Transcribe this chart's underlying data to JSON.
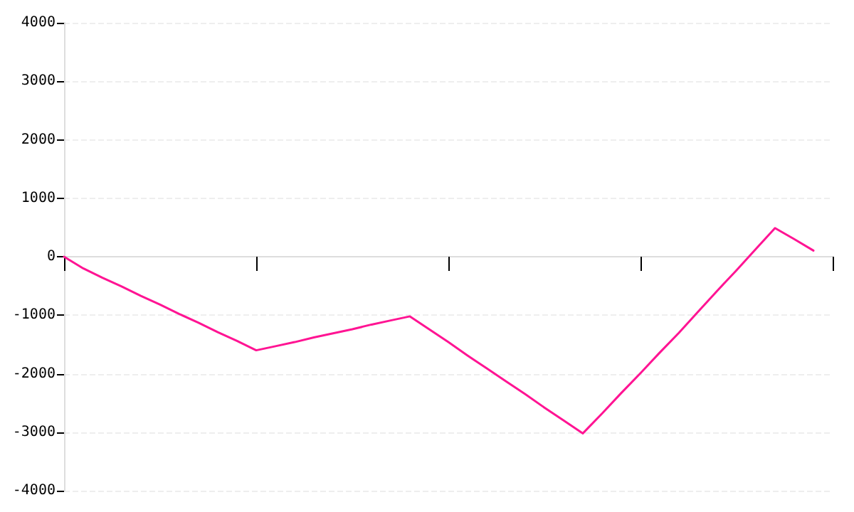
{
  "chart_data": {
    "type": "line",
    "categories": [
      null,
      null,
      null,
      null,
      null,
      null,
      null,
      null,
      null,
      null,
      null,
      null,
      null,
      null,
      null,
      null,
      null,
      null,
      null,
      null,
      null,
      null,
      null,
      null,
      null,
      null,
      null,
      null,
      null,
      null,
      null,
      null,
      null,
      null,
      null,
      null,
      null,
      null,
      null,
      null,
      null
    ],
    "values": [
      0,
      -200,
      -360,
      -510,
      -670,
      -820,
      -980,
      -1130,
      -1290,
      -1440,
      -1600,
      -1530,
      -1460,
      -1380,
      -1310,
      -1240,
      -1160,
      -1090,
      -1020,
      -1240,
      -1460,
      -1690,
      -1910,
      -2130,
      -2350,
      -2580,
      -2800,
      -3020,
      -2680,
      -2330,
      -1990,
      -1640,
      -1300,
      -940,
      -580,
      -230,
      130,
      490,
      300,
      105,
      null
    ],
    "color": "#ff1493",
    "ylim": [
      -4000,
      4000
    ],
    "yticks": [
      -4000,
      -3000,
      -2000,
      -1000,
      0,
      1000,
      2000,
      3000,
      4000
    ],
    "tick_labels": "y",
    "grid": "y",
    "marker": "none",
    "line_style": "solid"
  }
}
